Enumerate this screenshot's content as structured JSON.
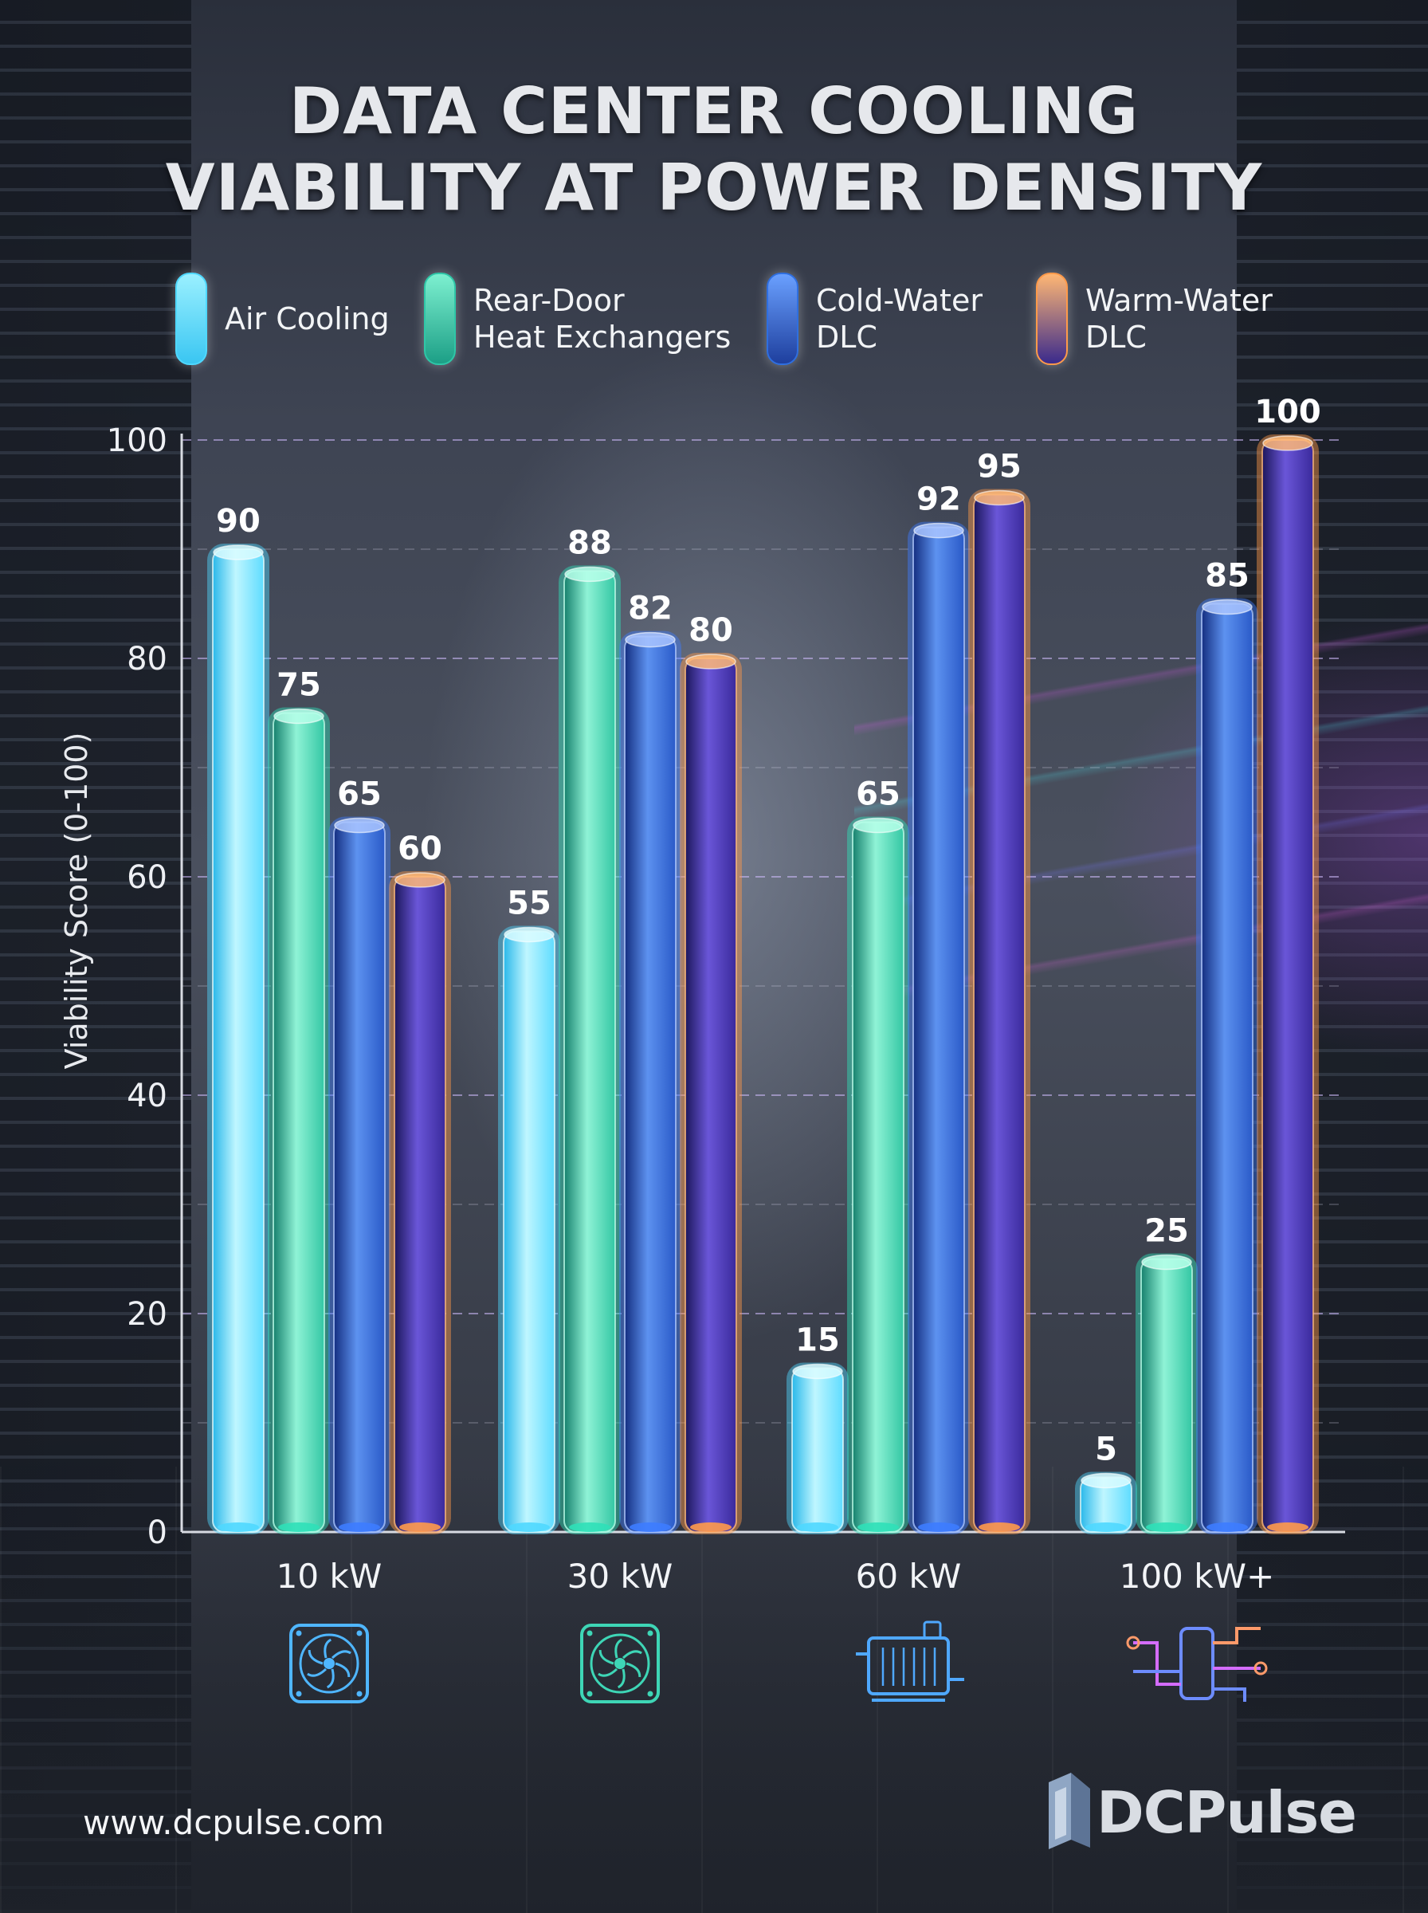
{
  "title": "DATA CENTER COOLING\nVIABILITY AT POWER DENSITY",
  "legend": [
    {
      "label": "Air Cooling",
      "color": "#4fd8ff"
    },
    {
      "label": "Rear-Door\nHeat Exchangers",
      "color": "#2fc7a8"
    },
    {
      "label": "Cold-Water\nDLC",
      "color": "#2f6fe0"
    },
    {
      "label": "Warm-Water\nDLC",
      "color": "#ff9a4a"
    }
  ],
  "chart_data": {
    "type": "bar",
    "categories": [
      "10 kW",
      "30 kW",
      "60 kW",
      "100 kW+"
    ],
    "series": [
      {
        "name": "Air Cooling",
        "values": [
          90,
          55,
          15,
          5
        ]
      },
      {
        "name": "Rear-Door Heat Exchangers",
        "values": [
          75,
          88,
          65,
          25
        ]
      },
      {
        "name": "Cold-Water DLC",
        "values": [
          65,
          82,
          92,
          85
        ]
      },
      {
        "name": "Warm-Water DLC",
        "values": [
          60,
          80,
          95,
          100
        ]
      }
    ],
    "ylabel": "Viability Score (0-100)",
    "ylim": [
      0,
      100
    ],
    "yticks": [
      0,
      20,
      40,
      60,
      80,
      100
    ],
    "grid": true,
    "category_icons": [
      "fan-icon",
      "fan-icon",
      "heat-exchanger-icon",
      "piping-manifold-icon"
    ]
  },
  "footer": {
    "url": "www.dcpulse.com",
    "brand": "DCPulse"
  }
}
